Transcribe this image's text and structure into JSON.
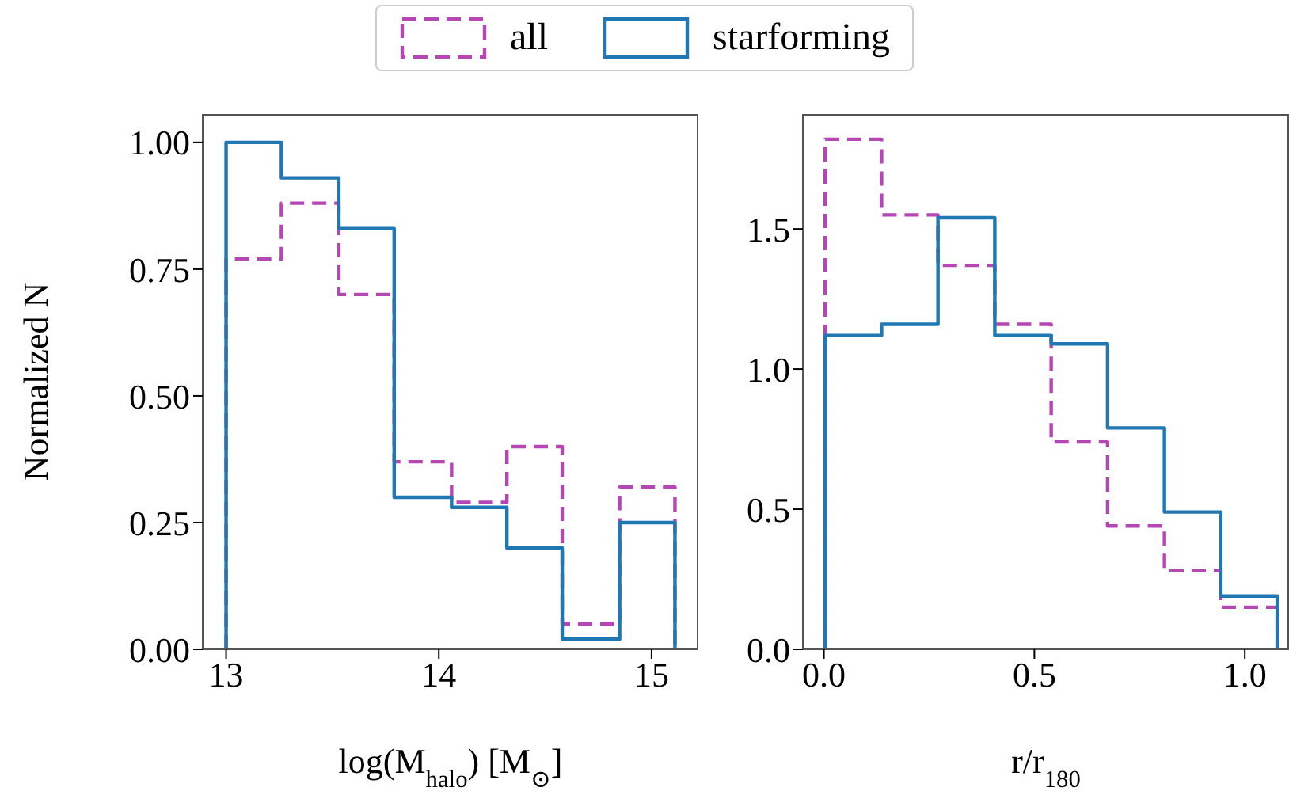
{
  "chart_data": [
    {
      "type": "histogram",
      "xlabel": "log(M$_{halo}$) [M$_{⊙}$]",
      "ylabel": "Normalized N",
      "legend": "top",
      "bins": [
        13.0,
        13.26,
        13.53,
        13.79,
        14.06,
        14.32,
        14.58,
        14.85,
        15.11
      ],
      "series": [
        {
          "name": "all",
          "color": "#b547b5",
          "line_style": "dashed",
          "values": [
            0.77,
            0.88,
            0.7,
            0.37,
            0.29,
            0.4,
            0.05,
            0.32
          ]
        },
        {
          "name": "starforming",
          "color": "#1f77b4",
          "line_style": "solid",
          "values": [
            1.0,
            0.93,
            0.83,
            0.3,
            0.28,
            0.2,
            0.02,
            0.25
          ]
        }
      ],
      "xlim": [
        12.89,
        15.22
      ],
      "ylim": [
        0,
        1.056
      ],
      "xticks": [
        13,
        14,
        15
      ],
      "yticks": [
        {
          "value": 0,
          "label": "0.00"
        },
        {
          "value": 0.25,
          "label": "0.25"
        },
        {
          "value": 0.5,
          "label": "0.50"
        },
        {
          "value": 0.75,
          "label": "0.75"
        },
        {
          "value": 1,
          "label": "1.00"
        }
      ]
    },
    {
      "type": "histogram",
      "xlabel": "r/r$_{180}$",
      "bins": [
        0.003,
        0.137,
        0.271,
        0.406,
        0.54,
        0.674,
        0.809,
        0.943,
        1.077
      ],
      "series": [
        {
          "color": "#b547b5",
          "line_style": "dashed",
          "values": [
            1.82,
            1.55,
            1.37,
            1.16,
            0.74,
            0.44,
            0.28,
            0.15
          ]
        },
        {
          "color": "#1f77b4",
          "line_style": "solid",
          "values": [
            1.12,
            1.16,
            1.54,
            1.12,
            1.09,
            0.79,
            0.49,
            0.19
          ]
        }
      ],
      "xlim": [
        -0.05,
        1.105
      ],
      "ylim": [
        0,
        1.91
      ],
      "xticks": [
        {
          "value": 0,
          "label": "0.0"
        },
        {
          "value": 0.5,
          "label": "0.5"
        },
        {
          "value": 1,
          "label": "1.0"
        }
      ],
      "yticks": [
        {
          "value": 0,
          "label": "0.0"
        },
        {
          "value": 0.5,
          "label": "0.5"
        },
        {
          "value": 1,
          "label": "1.0"
        },
        {
          "value": 1.5,
          "label": "1.5"
        }
      ]
    }
  ]
}
